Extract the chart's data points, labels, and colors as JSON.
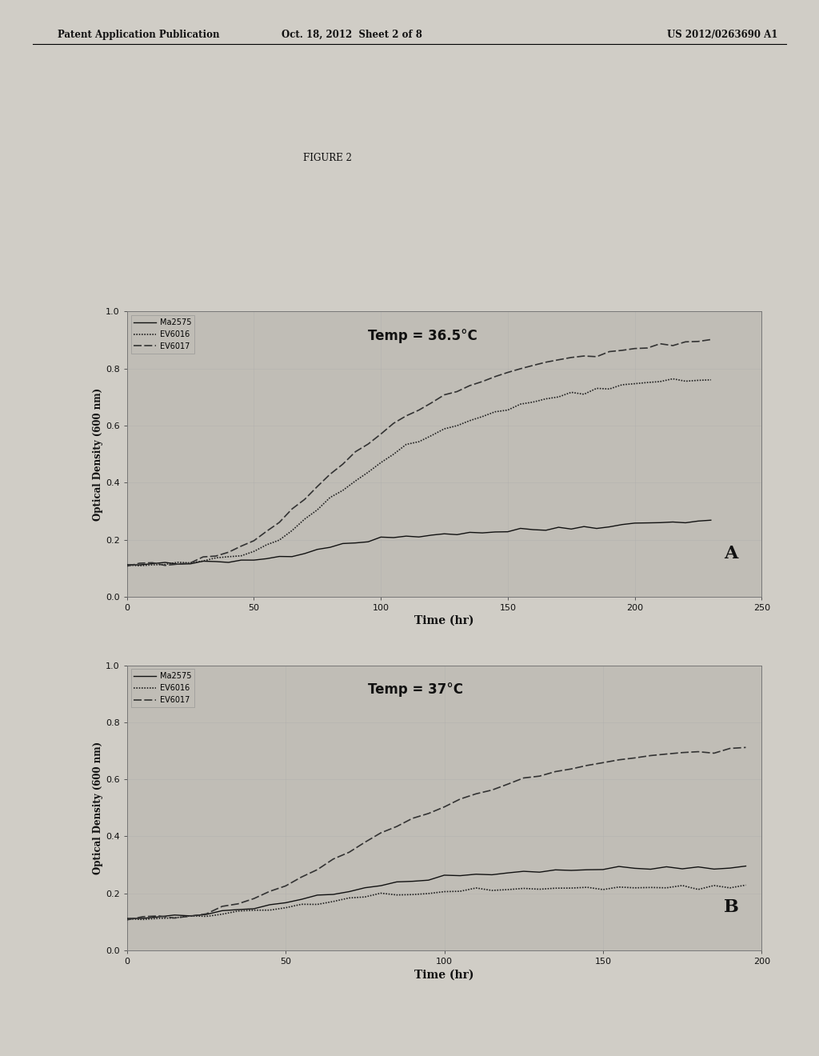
{
  "header_left": "Patent Application Publication",
  "header_mid": "Oct. 18, 2012  Sheet 2 of 8",
  "header_right": "US 2012/0263690 A1",
  "figure_label": "FIGURE 2",
  "page_bg": "#d8d4cc",
  "plot_bg": "#c8c4bc",
  "panel_A": {
    "label": "A",
    "temp_text": "Temp = 36.5°C",
    "xlabel": "Time (hr)",
    "ylabel": "Optical Density (600 nm)",
    "xlim": [
      0,
      250
    ],
    "ylim": [
      0.0,
      1.0
    ],
    "xticks": [
      0,
      50,
      100,
      150,
      200,
      250
    ],
    "yticks": [
      0.0,
      0.2,
      0.4,
      0.6,
      0.8,
      1.0
    ],
    "series": {
      "Ma2575": {
        "style": "solid",
        "color": "#111111",
        "linewidth": 1.0,
        "x": [
          0,
          5,
          10,
          15,
          20,
          25,
          30,
          35,
          40,
          45,
          50,
          55,
          60,
          65,
          70,
          75,
          80,
          85,
          90,
          95,
          100,
          105,
          110,
          115,
          120,
          125,
          130,
          135,
          140,
          145,
          150,
          155,
          160,
          165,
          170,
          175,
          180,
          185,
          190,
          195,
          200,
          205,
          210,
          215,
          220,
          225,
          230
        ],
        "y": [
          0.11,
          0.112,
          0.113,
          0.114,
          0.115,
          0.116,
          0.118,
          0.12,
          0.122,
          0.126,
          0.13,
          0.135,
          0.14,
          0.148,
          0.158,
          0.168,
          0.177,
          0.185,
          0.192,
          0.198,
          0.203,
          0.208,
          0.212,
          0.215,
          0.218,
          0.22,
          0.222,
          0.224,
          0.226,
          0.228,
          0.23,
          0.232,
          0.235,
          0.237,
          0.24,
          0.242,
          0.245,
          0.247,
          0.25,
          0.252,
          0.255,
          0.258,
          0.26,
          0.263,
          0.265,
          0.268,
          0.27
        ]
      },
      "EV6016": {
        "style": "dense_dot",
        "color": "#222222",
        "linewidth": 1.2,
        "x": [
          0,
          5,
          10,
          15,
          20,
          25,
          30,
          35,
          40,
          45,
          50,
          55,
          60,
          65,
          70,
          75,
          80,
          85,
          90,
          95,
          100,
          105,
          110,
          115,
          120,
          125,
          130,
          135,
          140,
          145,
          150,
          155,
          160,
          165,
          170,
          175,
          180,
          185,
          190,
          195,
          200,
          205,
          210,
          215,
          220,
          225,
          230
        ],
        "y": [
          0.11,
          0.112,
          0.113,
          0.115,
          0.117,
          0.12,
          0.123,
          0.128,
          0.135,
          0.145,
          0.16,
          0.18,
          0.205,
          0.235,
          0.27,
          0.305,
          0.34,
          0.375,
          0.41,
          0.44,
          0.47,
          0.5,
          0.525,
          0.545,
          0.565,
          0.585,
          0.6,
          0.615,
          0.63,
          0.645,
          0.66,
          0.672,
          0.683,
          0.693,
          0.702,
          0.71,
          0.718,
          0.725,
          0.731,
          0.737,
          0.742,
          0.747,
          0.751,
          0.755,
          0.758,
          0.761,
          0.763
        ]
      },
      "EV6017": {
        "style": "dash_dot",
        "color": "#333333",
        "linewidth": 1.2,
        "x": [
          0,
          5,
          10,
          15,
          20,
          25,
          30,
          35,
          40,
          45,
          50,
          55,
          60,
          65,
          70,
          75,
          80,
          85,
          90,
          95,
          100,
          105,
          110,
          115,
          120,
          125,
          130,
          135,
          140,
          145,
          150,
          155,
          160,
          165,
          170,
          175,
          180,
          185,
          190,
          195,
          200,
          205,
          210,
          215,
          220,
          225,
          230
        ],
        "y": [
          0.11,
          0.112,
          0.114,
          0.116,
          0.12,
          0.125,
          0.132,
          0.142,
          0.156,
          0.175,
          0.2,
          0.23,
          0.265,
          0.305,
          0.345,
          0.385,
          0.425,
          0.465,
          0.505,
          0.54,
          0.575,
          0.607,
          0.635,
          0.66,
          0.682,
          0.703,
          0.722,
          0.74,
          0.756,
          0.771,
          0.785,
          0.797,
          0.809,
          0.819,
          0.829,
          0.838,
          0.846,
          0.854,
          0.861,
          0.867,
          0.873,
          0.879,
          0.884,
          0.888,
          0.892,
          0.896,
          0.9
        ]
      }
    }
  },
  "panel_B": {
    "label": "B",
    "temp_text": "Temp = 37°C",
    "xlabel": "Time (hr)",
    "ylabel": "Optical Density (600 nm)",
    "xlim": [
      0,
      200
    ],
    "ylim": [
      0.0,
      1.0
    ],
    "xticks": [
      0,
      50,
      100,
      150,
      200
    ],
    "yticks": [
      0.0,
      0.2,
      0.4,
      0.6,
      0.8,
      1.0
    ],
    "series": {
      "Ma2575": {
        "style": "solid",
        "color": "#111111",
        "linewidth": 1.0,
        "x": [
          0,
          5,
          10,
          15,
          20,
          25,
          30,
          35,
          40,
          45,
          50,
          55,
          60,
          65,
          70,
          75,
          80,
          85,
          90,
          95,
          100,
          105,
          110,
          115,
          120,
          125,
          130,
          135,
          140,
          145,
          150,
          155,
          160,
          165,
          170,
          175,
          180,
          185,
          190,
          195
        ],
        "y": [
          0.11,
          0.113,
          0.115,
          0.118,
          0.122,
          0.127,
          0.133,
          0.14,
          0.148,
          0.158,
          0.169,
          0.181,
          0.193,
          0.204,
          0.213,
          0.222,
          0.231,
          0.239,
          0.246,
          0.252,
          0.258,
          0.263,
          0.267,
          0.271,
          0.274,
          0.277,
          0.279,
          0.281,
          0.283,
          0.284,
          0.286,
          0.287,
          0.288,
          0.289,
          0.29,
          0.291,
          0.292,
          0.293,
          0.294,
          0.295
        ]
      },
      "EV6016": {
        "style": "dense_dot",
        "color": "#222222",
        "linewidth": 1.2,
        "x": [
          0,
          5,
          10,
          15,
          20,
          25,
          30,
          35,
          40,
          45,
          50,
          55,
          60,
          65,
          70,
          75,
          80,
          85,
          90,
          95,
          100,
          105,
          110,
          115,
          120,
          125,
          130,
          135,
          140,
          145,
          150,
          155,
          160,
          165,
          170,
          175,
          180,
          185,
          190,
          195
        ],
        "y": [
          0.11,
          0.112,
          0.114,
          0.116,
          0.118,
          0.121,
          0.125,
          0.13,
          0.136,
          0.143,
          0.151,
          0.16,
          0.168,
          0.175,
          0.182,
          0.188,
          0.193,
          0.197,
          0.2,
          0.203,
          0.206,
          0.208,
          0.21,
          0.212,
          0.213,
          0.214,
          0.215,
          0.216,
          0.217,
          0.218,
          0.219,
          0.219,
          0.22,
          0.22,
          0.221,
          0.221,
          0.222,
          0.222,
          0.222,
          0.223
        ]
      },
      "EV6017": {
        "style": "dash_dot",
        "color": "#333333",
        "linewidth": 1.2,
        "x": [
          0,
          5,
          10,
          15,
          20,
          25,
          30,
          35,
          40,
          45,
          50,
          55,
          60,
          65,
          70,
          75,
          80,
          85,
          90,
          95,
          100,
          105,
          110,
          115,
          120,
          125,
          130,
          135,
          140,
          145,
          150,
          155,
          160,
          165,
          170,
          175,
          180,
          185,
          190,
          195
        ],
        "y": [
          0.11,
          0.113,
          0.116,
          0.12,
          0.126,
          0.135,
          0.147,
          0.163,
          0.182,
          0.205,
          0.23,
          0.258,
          0.288,
          0.318,
          0.348,
          0.378,
          0.408,
          0.435,
          0.46,
          0.485,
          0.508,
          0.53,
          0.55,
          0.568,
          0.585,
          0.6,
          0.614,
          0.627,
          0.638,
          0.648,
          0.657,
          0.666,
          0.673,
          0.68,
          0.687,
          0.693,
          0.699,
          0.704,
          0.71,
          0.715
        ]
      }
    }
  }
}
